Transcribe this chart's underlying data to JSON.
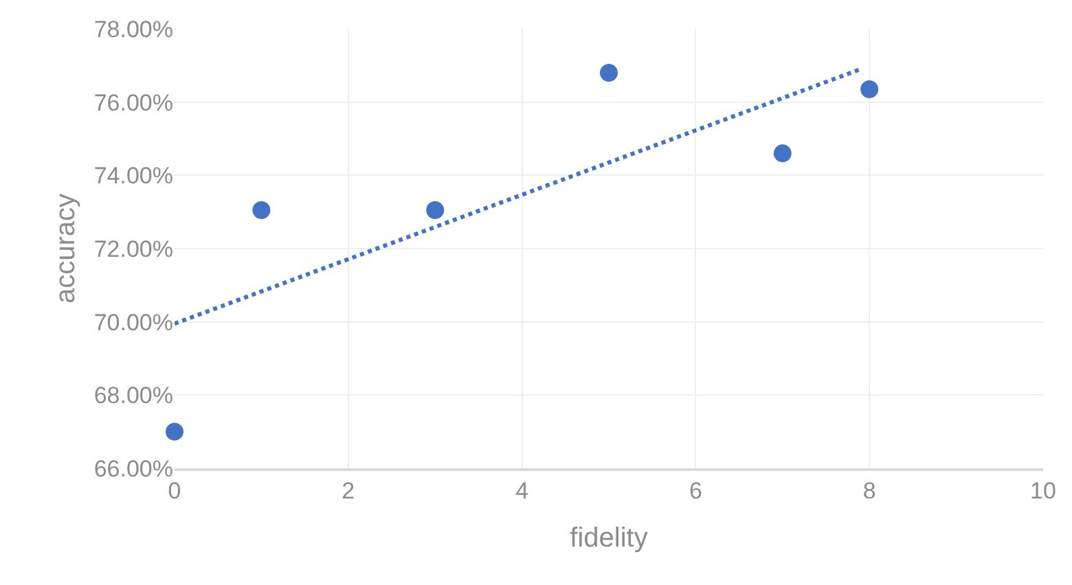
{
  "chart_data": {
    "type": "scatter",
    "xlabel": "fidelity",
    "ylabel": "accuracy",
    "xlim": [
      0,
      10
    ],
    "xticks": [
      0,
      2,
      4,
      6,
      8,
      10
    ],
    "ylim": [
      66,
      78
    ],
    "yticks": [
      {
        "value": 66,
        "label": "66.00%"
      },
      {
        "value": 68,
        "label": "68.00%"
      },
      {
        "value": 70,
        "label": "70.00%"
      },
      {
        "value": 72,
        "label": "72.00%"
      },
      {
        "value": 74,
        "label": "74.00%"
      },
      {
        "value": 76,
        "label": "76.00%"
      },
      {
        "value": 78,
        "label": "78.00%"
      }
    ],
    "grid": true,
    "marker": "circle",
    "series": [
      {
        "color": "#4472c4",
        "x": [
          0,
          1,
          3,
          5,
          7,
          8
        ],
        "values": [
          67.0,
          73.05,
          73.05,
          76.8,
          74.6,
          76.35
        ]
      },
      {
        "type": "line",
        "color": "#4472c4",
        "line_style": "dotted",
        "marker": "none",
        "x": [
          0,
          7.9
        ],
        "values": [
          69.95,
          76.9
        ]
      }
    ]
  }
}
